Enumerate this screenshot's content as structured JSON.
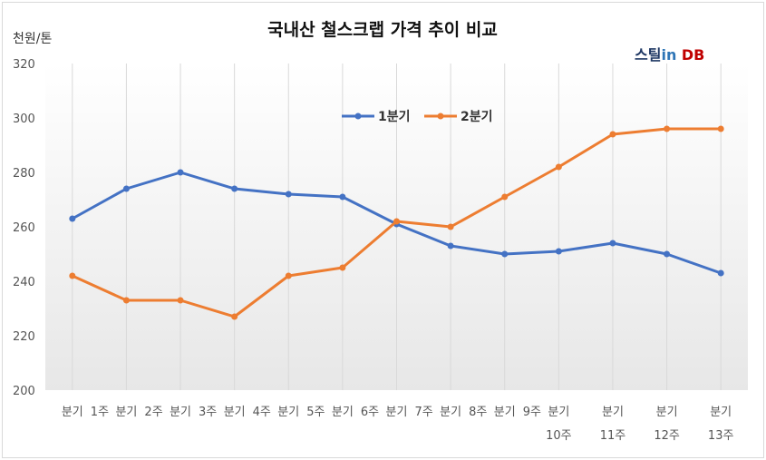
{
  "chart_data": {
    "type": "line",
    "title": "국내산 철스크랩 가격 추이 비교",
    "ylabel": "천원/톤",
    "xlabel": "",
    "ylim": [
      200,
      320
    ],
    "yticks": [
      200,
      220,
      240,
      260,
      280,
      300,
      320
    ],
    "grid": "vertical",
    "legend_position": "top-center",
    "categories": [
      [
        "분기",
        "1주"
      ],
      [
        "분기",
        "2주"
      ],
      [
        "분기",
        "3주"
      ],
      [
        "분기",
        "4주"
      ],
      [
        "분기",
        "5주"
      ],
      [
        "분기",
        "6주"
      ],
      [
        "분기",
        "7주"
      ],
      [
        "분기",
        "8주"
      ],
      [
        "분기",
        "9주"
      ],
      [
        "분기",
        "10주"
      ],
      [
        "분기",
        "11주"
      ],
      [
        "분기",
        "12주"
      ],
      [
        "분기",
        "13주"
      ]
    ],
    "series": [
      {
        "name": "1분기",
        "color": "#4472c4",
        "values": [
          263,
          274,
          280,
          274,
          272,
          271,
          261,
          253,
          250,
          251,
          254,
          250,
          243
        ]
      },
      {
        "name": "2분기",
        "color": "#ed7d31",
        "values": [
          242,
          233,
          233,
          227,
          242,
          245,
          262,
          260,
          271,
          282,
          294,
          296,
          296
        ]
      }
    ]
  },
  "logo": {
    "part1": "스틸",
    "part2": "in",
    "part3": " DB",
    "colors": {
      "part1": "#1f3864",
      "part2": "#2e75b6",
      "part3": "#c00000"
    }
  }
}
